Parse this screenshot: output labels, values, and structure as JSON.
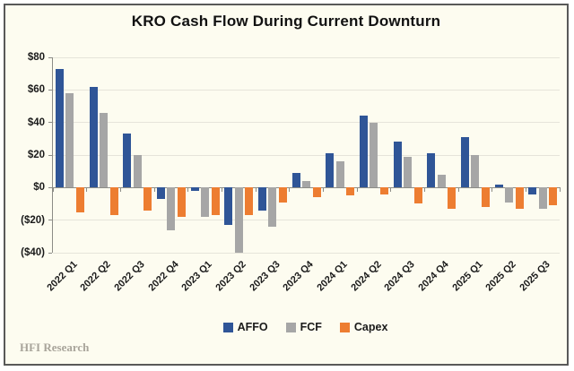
{
  "title": "KRO Cash Flow During Current Downturn",
  "footer": {
    "brand": "HFI Research"
  },
  "colors": {
    "background": "#FDFCF0",
    "frame_border": "#595959",
    "gridline": "#E6E4DA",
    "axis": "#8C8C86",
    "affo_blue": "#2F5597",
    "fcf_gray": "#A6A6A6",
    "capex_orange": "#ED7D31"
  },
  "chart_data": {
    "type": "bar",
    "title": "KRO Cash Flow During Current Downturn",
    "categories": [
      "2022 Q1",
      "2022 Q2",
      "2022 Q3",
      "2022 Q4",
      "2023 Q1",
      "2023 Q2",
      "2023 Q3",
      "2023 Q4",
      "2024 Q1",
      "2024 Q2",
      "2024 Q3",
      "2024 Q4",
      "2025 Q1",
      "2025 Q2",
      "2025 Q3"
    ],
    "series": [
      {
        "name": "AFFO",
        "color": "#2F5597",
        "values": [
          73,
          62,
          33,
          -7,
          -2,
          -23,
          -14,
          9,
          21,
          44,
          28,
          21,
          31,
          2,
          -4
        ]
      },
      {
        "name": "FCF",
        "color": "#A6A6A6",
        "values": [
          58,
          46,
          20,
          -26,
          -18,
          -40,
          -24,
          4,
          16,
          40,
          19,
          8,
          20,
          -9,
          -13
        ]
      },
      {
        "name": "Capex",
        "color": "#ED7D31",
        "values": [
          -15,
          -17,
          -14,
          -18,
          -17,
          -17,
          -9,
          -6,
          -5,
          -4,
          -10,
          -13,
          -12,
          -13,
          -11
        ]
      }
    ],
    "ylim": [
      -40,
      80
    ],
    "yticks": [
      {
        "value": 80,
        "label": "$80"
      },
      {
        "value": 60,
        "label": "$60"
      },
      {
        "value": 40,
        "label": "$40"
      },
      {
        "value": 20,
        "label": "$20"
      },
      {
        "value": 0,
        "label": "$0"
      },
      {
        "value": -20,
        "label": "($20)"
      },
      {
        "value": -40,
        "label": "($40)"
      }
    ],
    "grid": true,
    "legend_position": "bottom"
  }
}
